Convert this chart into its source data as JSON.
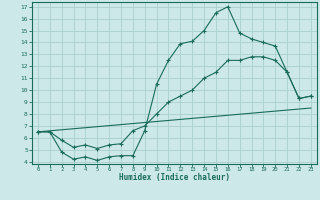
{
  "xlabel": "Humidex (Indice chaleur)",
  "bg_color": "#cce8e8",
  "line_color": "#1a6b5a",
  "grid_color": "#aacfcf",
  "xlim": [
    -0.5,
    23.5
  ],
  "ylim": [
    3.8,
    17.4
  ],
  "xticks": [
    0,
    1,
    2,
    3,
    4,
    5,
    6,
    7,
    8,
    9,
    10,
    11,
    12,
    13,
    14,
    15,
    16,
    17,
    18,
    19,
    20,
    21,
    22,
    23
  ],
  "yticks": [
    4,
    5,
    6,
    7,
    8,
    9,
    10,
    11,
    12,
    13,
    14,
    15,
    16,
    17
  ],
  "line1_x": [
    0,
    1,
    2,
    3,
    4,
    5,
    6,
    7,
    8,
    9,
    10,
    11,
    12,
    13,
    14,
    15,
    16,
    17,
    18,
    19,
    20,
    21,
    22,
    23
  ],
  "line1_y": [
    6.5,
    6.5,
    4.8,
    4.2,
    4.4,
    4.1,
    4.4,
    4.5,
    4.5,
    6.6,
    10.5,
    12.5,
    13.9,
    14.1,
    15.0,
    16.5,
    17.0,
    14.8,
    14.3,
    14.0,
    13.7,
    11.5,
    9.3,
    9.5
  ],
  "line2_x": [
    0,
    1,
    2,
    3,
    4,
    5,
    6,
    7,
    8,
    9,
    10,
    11,
    12,
    13,
    14,
    15,
    16,
    17,
    18,
    19,
    20,
    21,
    22,
    23
  ],
  "line2_y": [
    6.5,
    6.5,
    5.8,
    5.2,
    5.4,
    5.1,
    5.4,
    5.5,
    6.6,
    7.0,
    8.0,
    9.0,
    9.5,
    10.0,
    11.0,
    11.5,
    12.5,
    12.5,
    12.8,
    12.8,
    12.5,
    11.5,
    9.3,
    9.5
  ],
  "line3_x": [
    0,
    23
  ],
  "line3_y": [
    6.5,
    8.5
  ]
}
